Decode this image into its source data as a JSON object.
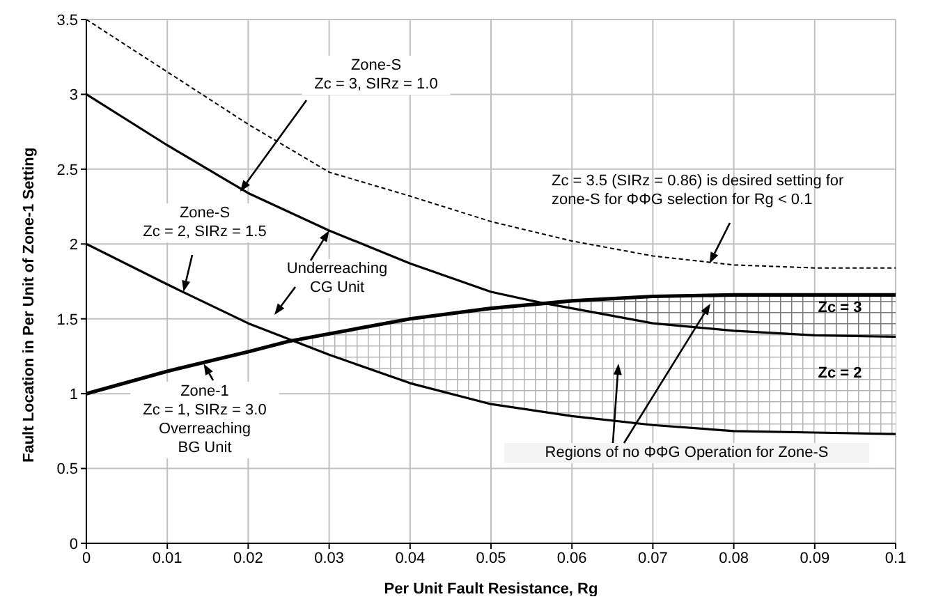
{
  "chart_data": {
    "type": "line",
    "xlabel": "Per Unit Fault Resistance, Rg",
    "ylabel": "Fault Location in Per Unit of Zone-1 Setting",
    "xlim": [
      0,
      0.1
    ],
    "xticks": [
      0,
      0.01,
      0.02,
      0.03,
      0.04,
      0.05,
      0.06,
      0.07,
      0.08,
      0.09,
      0.1
    ],
    "ylim": [
      0,
      3.5
    ],
    "yticks": [
      0,
      0.5,
      1,
      1.5,
      2,
      2.5,
      3,
      3.5
    ],
    "grid": true,
    "marker": "none",
    "series": [
      {
        "color": "#000000",
        "line_style": "dashed",
        "x": [
          0,
          0.01,
          0.02,
          0.03,
          0.04,
          0.05,
          0.06,
          0.07,
          0.08,
          0.09,
          0.1
        ],
        "values": [
          3.5,
          3.15,
          2.8,
          2.48,
          2.32,
          2.15,
          2.02,
          1.92,
          1.86,
          1.84,
          1.84
        ]
      },
      {
        "color": "#000000",
        "line_style": "solid",
        "x": [
          0,
          0.01,
          0.02,
          0.03,
          0.04,
          0.05,
          0.056,
          0.06,
          0.07,
          0.08,
          0.09,
          0.1
        ],
        "values": [
          3.0,
          2.66,
          2.34,
          2.09,
          1.87,
          1.68,
          1.61,
          1.57,
          1.47,
          1.42,
          1.39,
          1.38
        ],
        "lower": [
          null,
          null,
          null,
          null,
          null,
          null,
          1.61,
          1.57,
          1.47,
          1.42,
          1.39,
          1.38
        ],
        "upper": [
          null,
          null,
          null,
          null,
          null,
          null,
          1.61,
          1.62,
          1.65,
          1.66,
          1.66,
          1.66
        ]
      },
      {
        "color": "#000000",
        "line_style": "solid",
        "x": [
          0,
          0.01,
          0.02,
          0.03,
          0.04,
          0.05,
          0.06,
          0.07,
          0.08,
          0.09,
          0.1
        ],
        "values": [
          2.0,
          1.73,
          1.47,
          1.26,
          1.07,
          0.93,
          0.85,
          0.79,
          0.75,
          0.74,
          0.73
        ]
      },
      {
        "color": "#000000",
        "line_style": "solid",
        "x": [
          0,
          0.01,
          0.02,
          0.025,
          0.03,
          0.04,
          0.05,
          0.06,
          0.07,
          0.08,
          0.09,
          0.1
        ],
        "values": [
          1.0,
          1.15,
          1.28,
          1.35,
          1.4,
          1.5,
          1.57,
          1.62,
          1.65,
          1.66,
          1.66,
          1.66
        ],
        "lower": [
          null,
          null,
          null,
          1.35,
          1.26,
          1.07,
          0.93,
          0.85,
          0.79,
          0.75,
          0.74,
          0.73
        ],
        "upper": [
          null,
          null,
          null,
          1.35,
          1.4,
          1.5,
          1.57,
          1.62,
          1.65,
          1.66,
          1.66,
          1.66
        ]
      }
    ],
    "annotations": [
      {
        "text": "Zone-S\nZc = 3, SIRz = 1.0",
        "x": 0.019,
        "y": 2.35
      },
      {
        "text": "Zone-S\nZc = 2, SIRz = 1.5",
        "x": 0.012,
        "y": 1.68
      },
      {
        "text": "Underreaching\nCG Unit",
        "x": 0.03,
        "y": 2.09
      },
      {
        "text": "Zone-1\nZc = 1, SIRz = 3.0\nOverreaching\nBG Unit",
        "x": 0.0145,
        "y": 1.2
      },
      {
        "text": "Zc = 3.5  (SIRz = 0.86) is desired setting for\nzone-S for ΦΦG selection for Rg < 0.1",
        "x": 0.077,
        "y": 1.87
      },
      "Regions of  no ΦΦG Operation for Zone-S",
      "Zc = 3",
      "Zc = 2"
    ]
  }
}
